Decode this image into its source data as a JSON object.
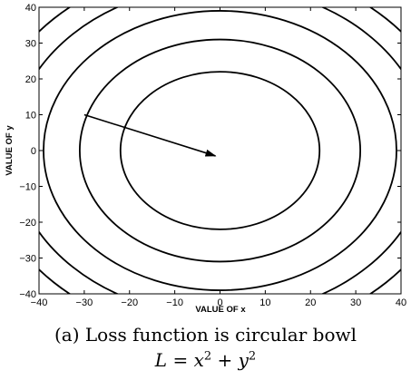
{
  "caption": {
    "text": "(a) Loss function is circular bowl",
    "formula": {
      "lhs": "L",
      "eq": "=",
      "term1_base": "x",
      "term1_exp": "2",
      "plus": "+",
      "term2_base": "y",
      "term2_exp": "2"
    }
  },
  "chart_data": {
    "type": "contour",
    "function": "x^2 + y^2",
    "xlabel": "VALUE OF x",
    "ylabel": "VALUE OF y",
    "xlim": [
      -40,
      40
    ],
    "ylim": [
      -40,
      40
    ],
    "xticks": [
      -40,
      -30,
      -20,
      -10,
      0,
      10,
      20,
      30,
      40
    ],
    "yticks": [
      -40,
      -30,
      -20,
      -10,
      0,
      10,
      20,
      30,
      40
    ],
    "contour_radii": [
      22,
      31,
      39,
      46,
      52,
      57
    ],
    "arrow": {
      "from": [
        -30,
        10
      ],
      "to": [
        -1,
        -1.5
      ]
    },
    "grid": false,
    "line_color": "#000000"
  }
}
